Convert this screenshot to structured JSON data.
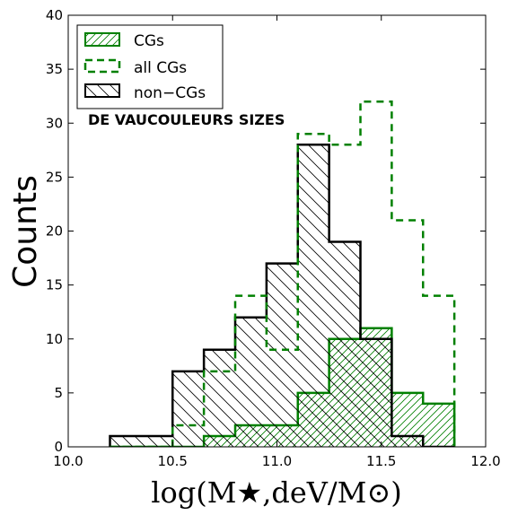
{
  "chart_data": {
    "type": "histogram",
    "annotation": "DE VAUCOULEURS SIZES",
    "xlabel": "log(M★,deV/M⊙)",
    "ylabel": "Counts",
    "xlim": [
      10.0,
      12.0
    ],
    "ylim": [
      0,
      40
    ],
    "xticks": [
      "10.0",
      "10.5",
      "11.0",
      "11.5",
      "12.0"
    ],
    "yticks": [
      "0",
      "5",
      "10",
      "15",
      "20",
      "25",
      "30",
      "35",
      "40"
    ],
    "bin_edges": [
      10.2,
      10.35,
      10.5,
      10.65,
      10.8,
      10.95,
      11.1,
      11.25,
      11.4,
      11.55,
      11.7,
      11.85
    ],
    "series": [
      {
        "name": "CGs",
        "style": "hatch-forward",
        "color": "#008000",
        "values": [
          0,
          0,
          0,
          1,
          2,
          2,
          5,
          10,
          11,
          5,
          4
        ]
      },
      {
        "name": "all CGs",
        "style": "dashed",
        "color": "#008000",
        "values": [
          0,
          0,
          2,
          7,
          14,
          9,
          29,
          28,
          32,
          21,
          14
        ]
      },
      {
        "name": "non−CGs",
        "style": "hatch-backward",
        "color": "#000000",
        "values": [
          1,
          1,
          7,
          9,
          12,
          17,
          28,
          19,
          10,
          1,
          0
        ]
      }
    ],
    "legend_position": "top-left",
    "grid": false
  }
}
